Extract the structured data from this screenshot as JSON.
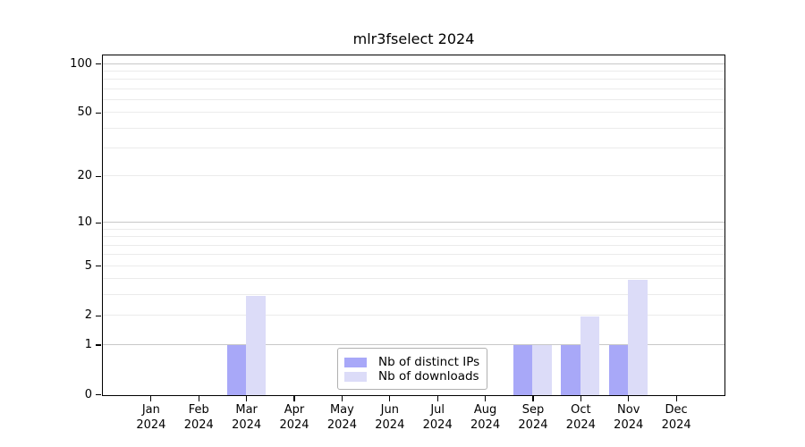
{
  "chart_data": {
    "type": "bar",
    "title": "mlr3fselect 2024",
    "months": [
      "Jan",
      "Feb",
      "Mar",
      "Apr",
      "May",
      "Jun",
      "Jul",
      "Aug",
      "Sep",
      "Oct",
      "Nov",
      "Dec"
    ],
    "year": "2024",
    "series": [
      {
        "name": "Nb of distinct IPs",
        "color": "#a8a8f8",
        "values": [
          0,
          0,
          1,
          0,
          0,
          0,
          0,
          0,
          1,
          1,
          1,
          0
        ]
      },
      {
        "name": "Nb of downloads",
        "color": "#dcdcf8",
        "values": [
          0,
          0,
          3,
          0,
          0,
          0,
          0,
          0,
          1,
          2,
          4,
          0
        ]
      }
    ],
    "scale": "log1p",
    "ylim": [
      0,
      112
    ],
    "y_ticks": [
      0,
      1,
      2,
      5,
      10,
      20,
      50,
      100
    ],
    "y_major_gridlines": [
      1,
      10,
      100
    ],
    "y_minor_gridlines": [
      2,
      3,
      4,
      5,
      6,
      7,
      8,
      9,
      20,
      30,
      40,
      50,
      60,
      70,
      80,
      90
    ],
    "grid": "horizontal",
    "legend_position": "lower-center",
    "colors": {
      "bar_distinct_ips": "#a8a8f8",
      "bar_downloads": "#dcdcf8",
      "major_grid": "#c8c8c8",
      "minor_grid": "#ebebeb",
      "axis": "#000000",
      "legend_border": "#b0b0b0",
      "background": "#ffffff"
    }
  }
}
